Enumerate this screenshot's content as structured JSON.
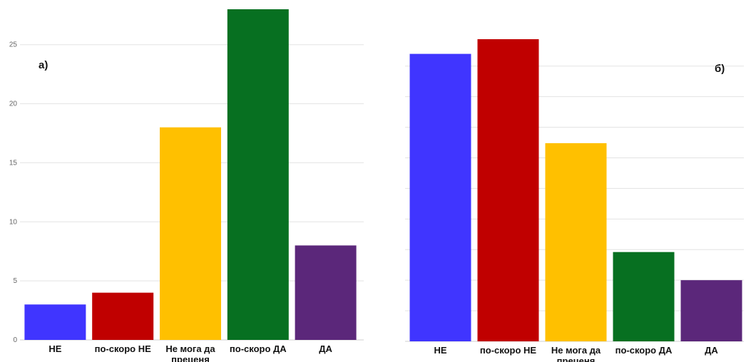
{
  "charts": {
    "left": {
      "panel_label": "а)"
    },
    "right": {
      "panel_label": "б)"
    }
  },
  "chart_data": [
    {
      "type": "bar",
      "title": "",
      "categories": [
        "НЕ",
        "по-скоро НЕ",
        "Не мога да преценя",
        "по-скоро ДА",
        "ДА"
      ],
      "values": [
        3,
        4,
        18,
        28,
        8
      ],
      "colors": [
        "#4035FF",
        "#C00000",
        "#FFC000",
        "#077021",
        "#5B277A"
      ],
      "ylim": [
        0,
        28
      ],
      "yticks": [
        0,
        5,
        10,
        15,
        20,
        25
      ],
      "grid": true,
      "xlabel": "",
      "ylabel": ""
    },
    {
      "type": "bar",
      "title": "",
      "categories": [
        "НЕ",
        "по-скоро НЕ",
        "Не мога да преценя",
        "по-скоро ДА",
        "ДА"
      ],
      "values": [
        23.5,
        24.7,
        16.2,
        7.3,
        5.0
      ],
      "colors": [
        "#4035FF",
        "#C00000",
        "#FFC000",
        "#077021",
        "#5B277A"
      ],
      "ylim": [
        0,
        28
      ],
      "yticks": [],
      "grid": true,
      "xlabel": "",
      "ylabel": ""
    }
  ]
}
